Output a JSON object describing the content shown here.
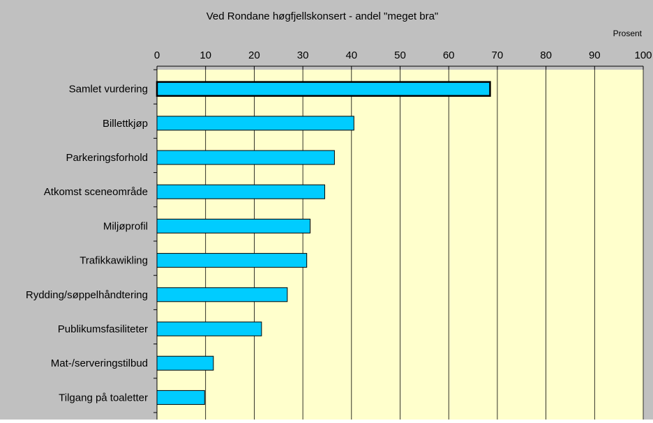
{
  "chart_data": {
    "type": "bar",
    "orientation": "horizontal",
    "title": "Ved Rondane høgfjellskonsert - andel \"meget bra\"",
    "unit_label": "Prosent",
    "xlim": [
      0,
      100
    ],
    "ticks": [
      0,
      10,
      20,
      30,
      40,
      50,
      60,
      70,
      80,
      90,
      100
    ],
    "grid": true,
    "categories": [
      "Samlet vurdering",
      "Billettkjøp",
      "Parkeringsforhold",
      "Atkomst sceneområde",
      "Miljøprofil",
      "Trafikkawikling",
      "Rydding/søppelhåndtering",
      "Publikumsfasiliteter",
      "Mat-/serveringstilbud",
      "Tilgang på toaletter"
    ],
    "values": [
      68.5,
      40.5,
      36.5,
      34.5,
      31.5,
      30.8,
      26.8,
      21.5,
      11.6,
      9.8
    ],
    "highlighted_category": "Samlet vurdering"
  },
  "colors": {
    "chart_background": "#c0c0c0",
    "plot_background": "#ffffcc",
    "bar_fill": "#00ccff",
    "bar_stroke": "#000000",
    "gridline": "#000000"
  }
}
